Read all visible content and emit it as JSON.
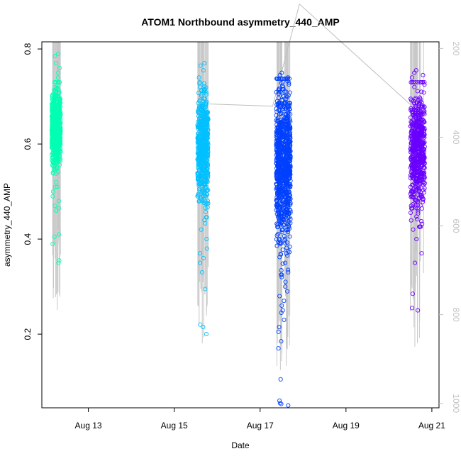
{
  "chart_data": {
    "type": "scatter",
    "title": "ATOM1 Northbound asymmetry_440_AMP",
    "xlabel": "Date",
    "ylabel": "asymmetry_440_AMP",
    "x_ticks": [
      "Aug 13",
      "Aug 15",
      "Aug 17",
      "Aug 19",
      "Aug 21"
    ],
    "y_ticks": [
      "0.2",
      "0.4",
      "0.6",
      "0.8"
    ],
    "right_ticks": [
      "200",
      "400",
      "600",
      "800",
      "1000"
    ],
    "ylim": [
      0.045,
      0.815
    ],
    "right_ylim": [
      1010,
      185
    ],
    "xlim_days": [
      "2023-08-11T22:00",
      "2023-08-21T04:00"
    ],
    "grid": false,
    "colors": {
      "cluster1": "#00ffb2",
      "cluster2": "#00c0ff",
      "cluster3": "#0040ff",
      "cluster4": "#6a00ff",
      "depth_line": "#c8c8c8",
      "track_line": "#bebebe"
    },
    "clusters": [
      {
        "date_center": "2023-08-12T06:00",
        "date_span_hours": 5,
        "y_center": 0.635,
        "y_core_low": 0.55,
        "y_core_high": 0.71,
        "outliers": [
          0.405,
          0.41,
          0.355,
          0.35,
          0.39,
          0.46,
          0.47,
          0.465,
          0.5,
          0.79,
          0.785,
          0.77,
          0.76,
          0.75,
          0.74,
          0.725,
          0.52,
          0.54,
          0.49,
          0.48
        ]
      },
      {
        "date_center": "2023-08-15T16:00",
        "date_span_hours": 6,
        "y_center": 0.59,
        "y_core_low": 0.48,
        "y_core_high": 0.7,
        "outliers": [
          0.22,
          0.215,
          0.2,
          0.295,
          0.33,
          0.35,
          0.36,
          0.37,
          0.38,
          0.4,
          0.42,
          0.44,
          0.77,
          0.765,
          0.755,
          0.74,
          0.73,
          0.72
        ]
      },
      {
        "date_center": "2023-08-17T13:00",
        "date_span_hours": 8,
        "y_center": 0.56,
        "y_core_low": 0.4,
        "y_core_high": 0.7,
        "outliers": [
          0.05,
          0.055,
          0.06,
          0.053,
          0.105,
          0.17,
          0.185,
          0.205,
          0.215,
          0.23,
          0.245,
          0.25,
          0.26,
          0.27,
          0.28,
          0.29,
          0.3,
          0.31,
          0.32,
          0.33,
          0.35,
          0.37,
          0.75,
          0.745,
          0.74,
          0.73,
          0.72,
          0.71
        ]
      },
      {
        "date_center": "2023-08-20T16:00",
        "date_span_hours": 8,
        "y_center": 0.585,
        "y_core_low": 0.46,
        "y_core_high": 0.7,
        "outliers": [
          0.285,
          0.25,
          0.255,
          0.35,
          0.37,
          0.4,
          0.42,
          0.74,
          0.745,
          0.75,
          0.755,
          0.72,
          0.71
        ]
      }
    ],
    "depth_track": [
      {
        "date": "2023-08-15T20:00",
        "depth": 325
      },
      {
        "date": "2023-08-17T07:00",
        "depth": 330
      },
      {
        "date": "2023-08-17T22:00",
        "depth": 100
      },
      {
        "date": "2023-08-20T13:00",
        "depth": 330
      }
    ]
  }
}
